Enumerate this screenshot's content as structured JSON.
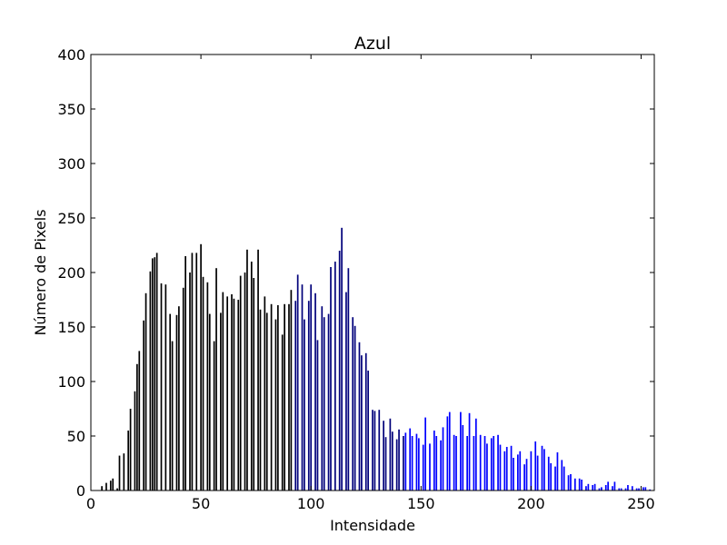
{
  "chart_data": {
    "type": "bar",
    "title": "Azul",
    "xlabel": "Intensidade",
    "ylabel": "Número de Pixels",
    "xlim": [
      0,
      256
    ],
    "ylim": [
      0,
      400
    ],
    "xticks": [
      "0",
      "50",
      "100",
      "150",
      "200",
      "250"
    ],
    "xtick_values": [
      0,
      50,
      100,
      150,
      200,
      250
    ],
    "yticks": [
      "0",
      "50",
      "100",
      "150",
      "200",
      "250",
      "300",
      "350",
      "400"
    ],
    "ytick_values": [
      0,
      50,
      100,
      150,
      200,
      250,
      300,
      350,
      400
    ],
    "grid": false,
    "bar_color_dark": "#000000",
    "bar_color_blue": "#0000ff",
    "series": [
      {
        "x": [
          5,
          7,
          9,
          10,
          12,
          13,
          15,
          17,
          18,
          20,
          21,
          22,
          24,
          25,
          27,
          28,
          29,
          30,
          32,
          34,
          36,
          37,
          39,
          40,
          42,
          43,
          45,
          46,
          48,
          50,
          51,
          53,
          54,
          56,
          57,
          59,
          60,
          62,
          64,
          65,
          67,
          68,
          70,
          71,
          73,
          74,
          76,
          77,
          79,
          80,
          82,
          84,
          85,
          87,
          88,
          90,
          91,
          93,
          94,
          96,
          97,
          99,
          100,
          102,
          103,
          105,
          106,
          108,
          109,
          111,
          113,
          114,
          116,
          117,
          119,
          120,
          122,
          123,
          125,
          126,
          128,
          129,
          131,
          133,
          134,
          136,
          137,
          139,
          140,
          142,
          143,
          145,
          146,
          148,
          149,
          151,
          152,
          154,
          156,
          157,
          159,
          160,
          162,
          163,
          165,
          166,
          168,
          169,
          171,
          172,
          174,
          175,
          177,
          179,
          180,
          182,
          183,
          185,
          186,
          188,
          189,
          191,
          192,
          194,
          195,
          197,
          198,
          200,
          202,
          203,
          205,
          206,
          208,
          209,
          211,
          212,
          214,
          215,
          217,
          218,
          220,
          222,
          223,
          225,
          226,
          228,
          229,
          231,
          232,
          234,
          235,
          237,
          238,
          240,
          241,
          243,
          244,
          246,
          248,
          249,
          251,
          252,
          254
        ],
        "values": [
          4,
          7,
          9,
          11,
          2,
          32,
          34,
          55,
          75,
          91,
          116,
          128,
          156,
          181,
          201,
          213,
          214,
          218,
          190,
          189,
          162,
          137,
          161,
          169,
          186,
          215,
          200,
          218,
          218,
          226,
          196,
          191,
          162,
          137,
          204,
          163,
          182,
          178,
          180,
          176,
          175,
          197,
          200,
          221,
          210,
          195,
          221,
          166,
          178,
          163,
          171,
          157,
          170,
          143,
          171,
          171,
          184,
          174,
          198,
          189,
          157,
          174,
          189,
          181,
          138,
          169,
          159,
          162,
          205,
          210,
          220,
          241,
          182,
          204,
          159,
          151,
          136,
          124,
          126,
          110,
          74,
          73,
          74,
          64,
          49,
          66,
          54,
          47,
          56,
          50,
          53,
          57,
          50,
          52,
          48,
          42,
          67,
          43,
          55,
          50,
          46,
          58,
          68,
          72,
          51,
          50,
          72,
          60,
          50,
          71,
          50,
          66,
          51,
          50,
          43,
          48,
          50,
          51,
          42,
          36,
          40,
          41,
          30,
          33,
          36,
          24,
          29,
          36,
          45,
          32,
          41,
          38,
          31,
          25,
          22,
          35,
          28,
          22,
          14,
          15,
          11,
          11,
          10,
          4,
          6,
          5,
          6,
          2,
          3,
          5,
          8,
          4,
          8,
          2,
          2,
          2,
          5,
          4,
          2,
          2,
          3,
          3,
          1
        ]
      }
    ]
  }
}
